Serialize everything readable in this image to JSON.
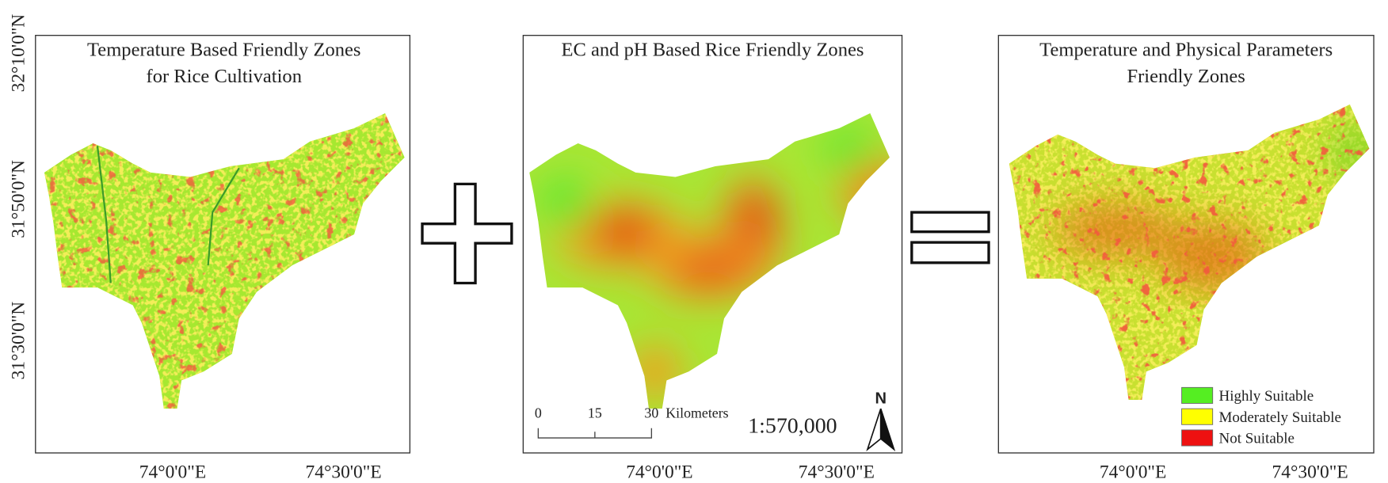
{
  "y_axis_labels": [
    "32°10'0\"N",
    "31°50'0\"N",
    "31°30'0\"N"
  ],
  "panels": [
    {
      "title_lines": [
        "Temperature Based Friendly Zones",
        "for Rice Cultivation"
      ],
      "x_axis_labels": [
        "74°0'0\"E",
        "74°30'0\"E"
      ]
    },
    {
      "title_lines": [
        "EC and pH Based Rice Friendly Zones"
      ],
      "x_axis_labels": [
        "74°0'0\"E",
        "74°30'0\"E"
      ]
    },
    {
      "title_lines": [
        "Temperature and Physical Parameters",
        "Friendly Zones"
      ],
      "x_axis_labels": [
        "74°0'0\"E",
        "74°30'0\"E"
      ]
    }
  ],
  "scale_bar": {
    "ticks": [
      "0",
      "15",
      "30"
    ],
    "unit": "Kilometers"
  },
  "scale_ratio": "1:570,000",
  "north": "N",
  "legend": [
    {
      "label": "Highly Suitable",
      "color": "#55ee22"
    },
    {
      "label": "Moderately Suitable",
      "color": "#ffff00"
    },
    {
      "label": "Not Suitable",
      "color": "#ee1111"
    }
  ]
}
